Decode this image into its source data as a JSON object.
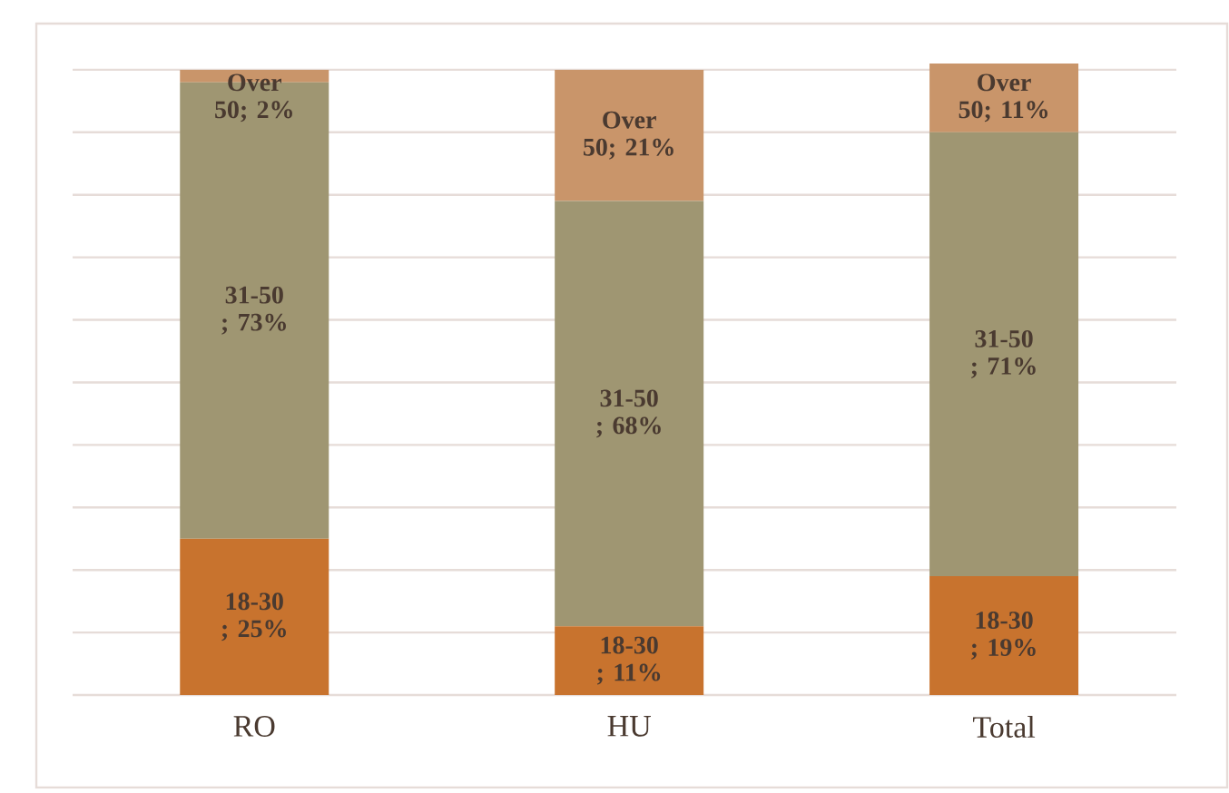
{
  "chart_data": {
    "type": "bar",
    "stacked": true,
    "categories": [
      "RO",
      "HU",
      "Total"
    ],
    "series": [
      {
        "color": "#c8732e",
        "values": [
          25,
          11,
          19
        ],
        "value_labels": [
          "18-30 ; 25%",
          "18-30 ; 11%",
          "18-30 ; 19%"
        ]
      },
      {
        "color": "#9f9672",
        "values": [
          73,
          68,
          71
        ],
        "value_labels": [
          "31-50 ; 73%",
          "31-50 ; 68%",
          "31-50 ; 71%"
        ]
      },
      {
        "color": "#c9956a",
        "values": [
          2,
          21,
          11
        ],
        "value_labels": [
          "Over 50; 2%",
          "Over 50; 21%",
          "Over 50; 11%"
        ]
      }
    ],
    "ylim": [
      0,
      101
    ],
    "yticks": [
      {
        "value": 0,
        "label": null
      },
      {
        "value": 10,
        "label": null
      },
      {
        "value": 20,
        "label": null
      },
      {
        "value": 30,
        "label": null
      },
      {
        "value": 40,
        "label": null
      },
      {
        "value": 50,
        "label": null
      },
      {
        "value": 60,
        "label": null
      },
      {
        "value": 70,
        "label": null
      },
      {
        "value": 80,
        "label": null
      },
      {
        "value": 90,
        "label": null
      },
      {
        "value": 100,
        "label": null
      }
    ],
    "grid": "y",
    "tick_labels": "x"
  }
}
